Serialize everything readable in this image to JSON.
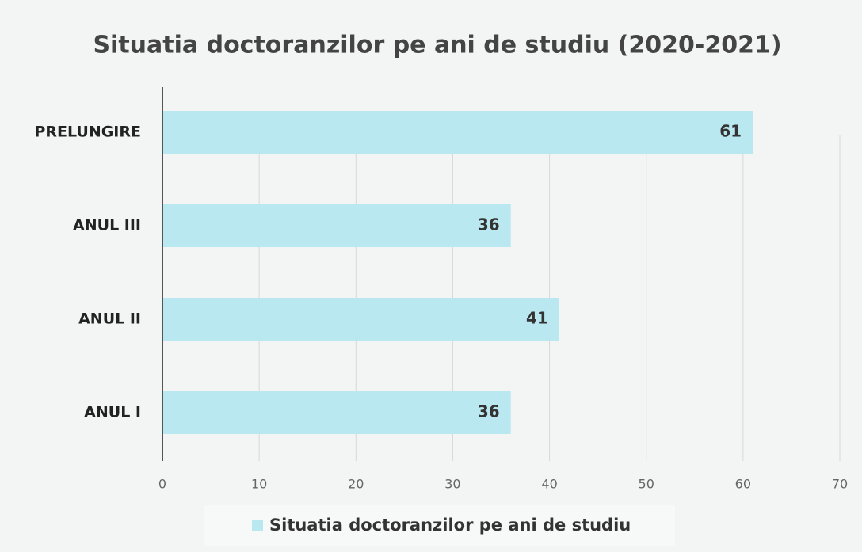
{
  "chart_data": {
    "type": "bar",
    "orientation": "horizontal",
    "title": "Situatia doctoranzilor pe ani de studiu (2020-2021)",
    "categories": [
      "ANUL I",
      "ANUL II",
      "ANUL III",
      "PRELUNGIRE"
    ],
    "series": [
      {
        "name": "Situatia doctoranzilor pe ani de studiu",
        "color": "#b9e8f0",
        "values": [
          36,
          41,
          36,
          61
        ]
      }
    ],
    "xlim": [
      0,
      70
    ],
    "xticks": [
      0,
      10,
      20,
      30,
      40,
      50,
      60,
      70
    ],
    "grid": true,
    "legend": "bottom"
  }
}
